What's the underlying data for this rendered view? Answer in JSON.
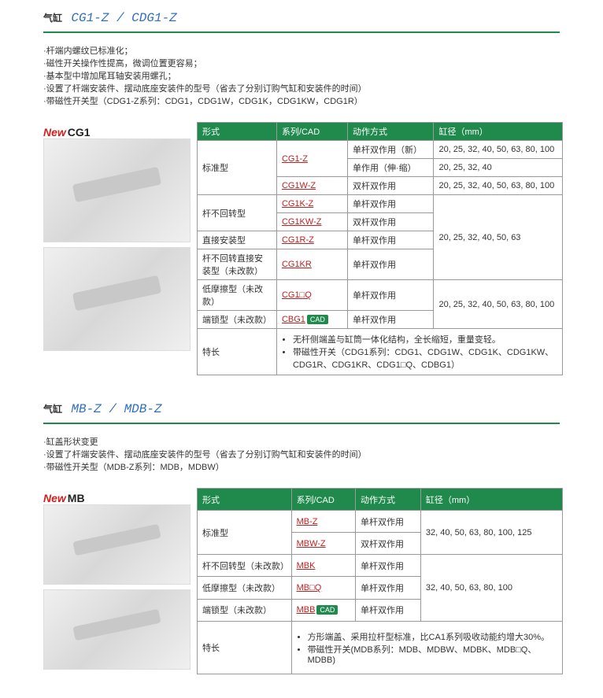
{
  "section1": {
    "titleLabel": "气缸",
    "titleModel": "CG1-Z / CDG1-Z",
    "descLines": [
      "·杆端内螺纹已标准化；",
      "·磁性开关操作性提高，微调位置更容易；",
      "·基本型中增加尾耳轴安装用螺孔；",
      "·设置了杆端安装件、摆动底座安装件的型号（省去了分别订购气缸和安装件的时间）",
      "·带磁性开关型（CDG1-Z系列：CDG1，CDG1W，CDG1K，CDG1KW，CDG1R）"
    ],
    "newTag": "New",
    "modelTag": "CG1",
    "headers": [
      "形式",
      "系列/CAD",
      "动作方式",
      "缸径（mm）"
    ],
    "rows": {
      "r1_type": "标准型",
      "r1_series": "CG1-Z",
      "r1_action": "单杆双作用（新）",
      "r1_bore": "20, 25, 32, 40, 50, 63, 80, 100",
      "r2_action": "单作用（伸·缩）",
      "r2_bore": "20, 25, 32, 40",
      "r3_series": "CG1W-Z",
      "r3_action": "双杆双作用",
      "r3_bore": "20, 25, 32, 40, 50, 63, 80, 100",
      "r4_type": "杆不回转型",
      "r4_series": "CG1K-Z",
      "r4_action": "单杆双作用",
      "r4_bore": "20, 25, 32, 40, 50, 63",
      "r5_series": "CG1KW-Z",
      "r5_action": "双杆双作用",
      "r6_type": "直接安装型",
      "r6_series": "CG1R-Z",
      "r6_action": "单杆双作用",
      "r7_type": "杆不回转直接安装型（未改款）",
      "r7_series": "CG1KR",
      "r7_action": "单杆双作用",
      "r8_type": "低摩擦型（未改款）",
      "r8_series": "CG1□Q",
      "r8_action": "单杆双作用",
      "r8_bore": "20, 25, 32, 40, 50, 63, 80, 100",
      "r9_type": "端锁型（未改款）",
      "r9_series": "CBG1",
      "r9_cad": "CAD",
      "r9_action": "单杆双作用",
      "feat_label": "特长",
      "feat1": "无杆侧端盖与缸筒一体化结构，全长缩短，重量变轻。",
      "feat2": "带磁性开关（CDG1系列：CDG1、CDG1W、CDG1K、CDG1KW、CDG1R、CDG1KR、CDG1□Q、CDBG1）"
    }
  },
  "section2": {
    "titleLabel": "气缸",
    "titleModel": "MB-Z / MDB-Z",
    "descLines": [
      "·缸盖形状变更",
      "·设置了杆端安装件、摆动底座安装件的型号（省去了分别订购气缸和安装件的时间）",
      "·带磁性开关型（MDB-Z系列：MDB，MDBW）"
    ],
    "newTag": "New",
    "modelTag": "MB",
    "headers": [
      "形式",
      "系列/CAD",
      "动作方式",
      "缸径（mm）"
    ],
    "rows": {
      "r1_type": "标准型",
      "r1_series": "MB-Z",
      "r1_action": "单杆双作用",
      "r1_bore": "32, 40, 50, 63, 80, 100, 125",
      "r2_series": "MBW-Z",
      "r2_action": "双杆双作用",
      "r3_type": "杆不回转型（未改款）",
      "r3_series": "MBK",
      "r3_action": "单杆双作用",
      "r3_bore": "32, 40, 50, 63, 80, 100",
      "r4_type": "低摩擦型（未改款）",
      "r4_series": "MB□Q",
      "r4_action": "单杆双作用",
      "r5_type": "端锁型（未改款）",
      "r5_series": "MBB",
      "r5_cad": "CAD",
      "r5_action": "单杆双作用",
      "feat_label": "特长",
      "feat1": "方形端盖、采用拉杆型标准，比CA1系列吸收动能约增大30%。",
      "feat2": "带磁性开关(MDB系列：MDB、MDBW、MDBK、MDB□Q、MDBB)"
    }
  }
}
